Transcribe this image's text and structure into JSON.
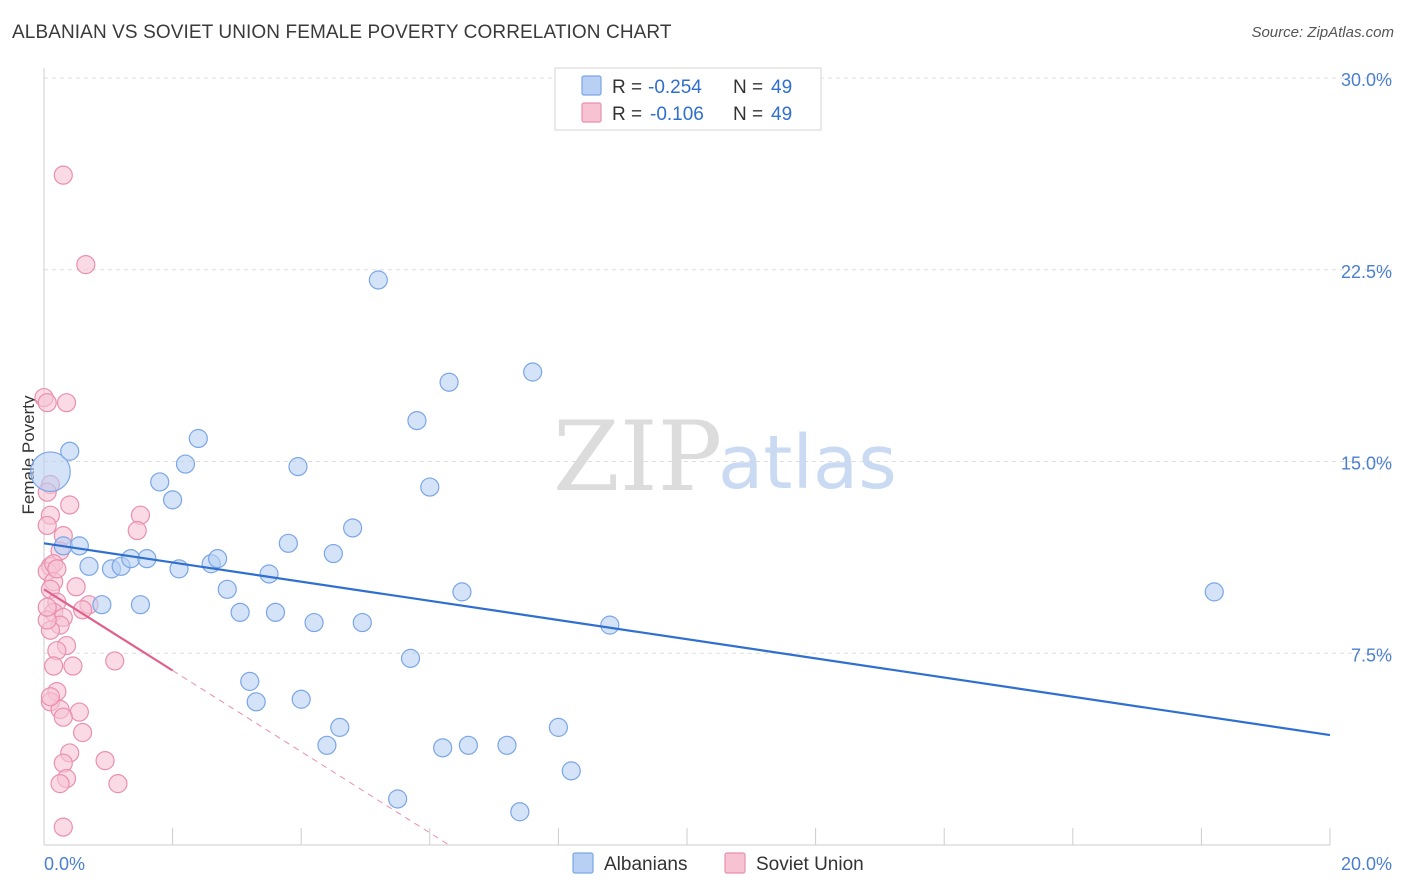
{
  "title": "ALBANIAN VS SOVIET UNION FEMALE POVERTY CORRELATION CHART",
  "source": "Source: ZipAtlas.com",
  "watermark": {
    "part1": "ZIP",
    "part2": "atlas"
  },
  "colors": {
    "albanians_fill": "#b8d0f3",
    "albanians_stroke": "#7aa6e6",
    "albanians_line": "#2f6fd0",
    "soviet_fill": "#f7c3d3",
    "soviet_stroke": "#ea8fae",
    "soviet_line": "#e0608a",
    "grid": "#dddddd",
    "tick_label": "#4a7fd0"
  },
  "legend": {
    "rows": [
      {
        "r_label": "R =",
        "r_value": "-0.254",
        "n_label": "N =",
        "n_value": "49"
      },
      {
        "r_label": "R =",
        "r_value": "-0.106",
        "n_label": "N =",
        "n_value": "49"
      }
    ]
  },
  "chart_data": {
    "type": "scatter",
    "title": "ALBANIAN VS SOVIET UNION FEMALE POVERTY CORRELATION CHART",
    "xlabel": "",
    "ylabel": "Female Poverty",
    "xlim": [
      0,
      20
    ],
    "ylim": [
      0,
      30
    ],
    "x_tick_labels": [
      "0.0%",
      "20.0%"
    ],
    "y_ticks": [
      7.5,
      15.0,
      22.5,
      30.0
    ],
    "y_tick_labels": [
      "7.5%",
      "15.0%",
      "22.5%",
      "30.0%"
    ],
    "x_minor_ticks": [
      2,
      4,
      6,
      8,
      10,
      12,
      14,
      16,
      18,
      20
    ],
    "grid": true,
    "legend_position": "top-center",
    "series": [
      {
        "name": "Albanians",
        "r": -0.254,
        "n": 49,
        "trend": {
          "x0": 0,
          "y0": 11.8,
          "x1": 20,
          "y1": 4.3,
          "solid_to": 20
        },
        "points": [
          [
            0.1,
            14.6,
            2.2
          ],
          [
            0.4,
            15.4,
            1
          ],
          [
            0.3,
            11.7,
            1
          ],
          [
            0.55,
            11.7,
            1
          ],
          [
            0.7,
            10.9,
            1
          ],
          [
            0.9,
            9.4,
            1
          ],
          [
            1.05,
            10.8,
            1
          ],
          [
            1.2,
            10.9,
            1
          ],
          [
            1.35,
            11.2,
            1
          ],
          [
            1.5,
            9.4,
            1
          ],
          [
            1.6,
            11.2,
            1
          ],
          [
            1.8,
            14.2,
            1
          ],
          [
            2.0,
            13.5,
            1
          ],
          [
            2.1,
            10.8,
            1
          ],
          [
            2.2,
            14.9,
            1
          ],
          [
            2.4,
            15.9,
            1
          ],
          [
            2.6,
            11.0,
            1
          ],
          [
            2.7,
            11.2,
            1
          ],
          [
            2.85,
            10.0,
            1
          ],
          [
            3.05,
            9.1,
            1
          ],
          [
            3.2,
            6.4,
            1
          ],
          [
            3.3,
            5.6,
            1
          ],
          [
            3.5,
            10.6,
            1
          ],
          [
            3.6,
            9.1,
            1
          ],
          [
            3.8,
            11.8,
            1
          ],
          [
            3.95,
            14.8,
            1
          ],
          [
            4.0,
            5.7,
            1
          ],
          [
            4.2,
            8.7,
            1
          ],
          [
            4.4,
            3.9,
            1
          ],
          [
            4.5,
            11.4,
            1
          ],
          [
            4.6,
            4.6,
            1
          ],
          [
            4.8,
            12.4,
            1
          ],
          [
            4.95,
            8.7,
            1
          ],
          [
            5.2,
            22.1,
            1
          ],
          [
            5.5,
            1.8,
            1
          ],
          [
            5.7,
            7.3,
            1
          ],
          [
            5.8,
            16.6,
            1
          ],
          [
            6.0,
            14.0,
            1
          ],
          [
            6.2,
            3.8,
            1
          ],
          [
            6.3,
            18.1,
            1
          ],
          [
            6.5,
            9.9,
            1
          ],
          [
            6.6,
            3.9,
            1
          ],
          [
            7.2,
            3.9,
            1
          ],
          [
            7.4,
            1.3,
            1
          ],
          [
            7.6,
            18.5,
            1
          ],
          [
            8.0,
            4.6,
            1
          ],
          [
            8.2,
            2.9,
            1
          ],
          [
            8.8,
            8.6,
            1
          ],
          [
            18.2,
            9.9,
            1
          ]
        ]
      },
      {
        "name": "Soviet Union",
        "r": -0.106,
        "n": 49,
        "trend": {
          "x0": 0,
          "y0": 10.0,
          "x1": 6.3,
          "y1": 0,
          "solid_to": 2.0
        },
        "points": [
          [
            0.3,
            26.2,
            1
          ],
          [
            0.65,
            22.7,
            1
          ],
          [
            0.0,
            17.5,
            1
          ],
          [
            0.05,
            17.3,
            1
          ],
          [
            0.35,
            17.3,
            1
          ],
          [
            0.1,
            14.1,
            1
          ],
          [
            0.05,
            13.8,
            1
          ],
          [
            0.4,
            13.3,
            1
          ],
          [
            0.1,
            12.9,
            1
          ],
          [
            0.05,
            12.5,
            1
          ],
          [
            0.3,
            12.1,
            1
          ],
          [
            1.5,
            12.9,
            1
          ],
          [
            1.45,
            12.3,
            1
          ],
          [
            0.25,
            11.5,
            1
          ],
          [
            0.1,
            10.9,
            1
          ],
          [
            0.05,
            10.7,
            1
          ],
          [
            0.15,
            10.3,
            1
          ],
          [
            0.1,
            10.0,
            1
          ],
          [
            0.2,
            9.5,
            1
          ],
          [
            0.7,
            9.4,
            1
          ],
          [
            0.6,
            9.2,
            1
          ],
          [
            0.15,
            9.1,
            1
          ],
          [
            0.3,
            8.9,
            1
          ],
          [
            0.25,
            8.6,
            1
          ],
          [
            0.1,
            8.4,
            1
          ],
          [
            0.35,
            7.8,
            1
          ],
          [
            0.2,
            7.6,
            1
          ],
          [
            1.1,
            7.2,
            1
          ],
          [
            0.15,
            7.0,
            1
          ],
          [
            0.45,
            7.0,
            1
          ],
          [
            0.2,
            6.0,
            1
          ],
          [
            0.1,
            5.6,
            1
          ],
          [
            0.25,
            5.3,
            1
          ],
          [
            0.55,
            5.2,
            1
          ],
          [
            0.6,
            4.4,
            1
          ],
          [
            0.4,
            3.6,
            1
          ],
          [
            0.3,
            3.2,
            1
          ],
          [
            0.95,
            3.3,
            1
          ],
          [
            0.35,
            2.6,
            1
          ],
          [
            0.25,
            2.4,
            1
          ],
          [
            1.15,
            2.4,
            1
          ],
          [
            0.3,
            0.7,
            1
          ],
          [
            0.15,
            11.0,
            1
          ],
          [
            0.05,
            8.8,
            1
          ],
          [
            0.5,
            10.1,
            1
          ],
          [
            0.2,
            10.8,
            1
          ],
          [
            0.1,
            5.8,
            1
          ],
          [
            0.3,
            5.0,
            1
          ],
          [
            0.05,
            9.3,
            1
          ]
        ]
      }
    ]
  },
  "bottom_legend": {
    "items": [
      "Albanians",
      "Soviet Union"
    ]
  }
}
